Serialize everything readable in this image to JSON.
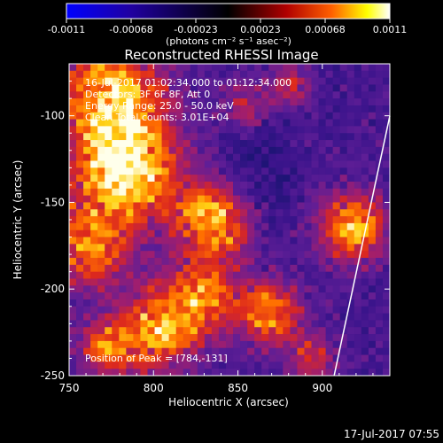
{
  "colorbar": {
    "ticks": [
      "-0.0011",
      "-0.00068",
      "-0.00023",
      "0.00023",
      "0.00068",
      "0.0011"
    ],
    "unit_label": "(photons cm⁻² s⁻¹ asec⁻²)",
    "range": [
      -0.0011,
      0.0011
    ],
    "colors": [
      "#0000ff",
      "#2000a0",
      "#000000",
      "#a00000",
      "#ff6000",
      "#ffff00",
      "#ffffff"
    ]
  },
  "chart_data": {
    "type": "heatmap",
    "title": "Reconstructed RHESSI Image",
    "xlabel": "Heliocentric X (arcsec)",
    "ylabel": "Heliocentric Y (arcsec)",
    "xlim": [
      750,
      940
    ],
    "ylim": [
      -250,
      -70
    ],
    "x_ticks": [
      750,
      800,
      850,
      900
    ],
    "y_ticks": [
      -100,
      -150,
      -200,
      -250
    ],
    "peak": [
      784,
      -131
    ],
    "limb_line": [
      [
        940,
        -100
      ],
      [
        907,
        -250
      ]
    ],
    "annotations": [
      "16-Jul-2017 01:02:34.000 to 01:12:34.000",
      "Detectors: 3F 6F 8F, Att 0",
      "Energy Range: 25.0 - 50.0 keV",
      "Clean  Total counts: 3.01E+04"
    ],
    "peak_label": "Position of Peak = [784,-131]",
    "grid": false,
    "sources": [
      {
        "x": 784,
        "y": -131,
        "i": 1.0,
        "r": 20
      },
      {
        "x": 775,
        "y": -90,
        "i": 0.85,
        "r": 22
      },
      {
        "x": 760,
        "y": -175,
        "i": 0.65,
        "r": 18
      },
      {
        "x": 835,
        "y": -160,
        "i": 0.8,
        "r": 16
      },
      {
        "x": 830,
        "y": -205,
        "i": 0.7,
        "r": 15
      },
      {
        "x": 800,
        "y": -225,
        "i": 0.75,
        "r": 17
      },
      {
        "x": 870,
        "y": -215,
        "i": 0.7,
        "r": 13
      },
      {
        "x": 918,
        "y": -165,
        "i": 0.8,
        "r": 14
      },
      {
        "x": 855,
        "y": -95,
        "i": 0.45,
        "r": 10
      },
      {
        "x": 880,
        "y": -82,
        "i": 0.4,
        "r": 9
      },
      {
        "x": 895,
        "y": -240,
        "i": 0.4,
        "r": 10
      },
      {
        "x": 770,
        "y": -235,
        "i": 0.55,
        "r": 10
      }
    ]
  },
  "footer": {
    "timestamp": "17-Jul-2017 07:55"
  }
}
